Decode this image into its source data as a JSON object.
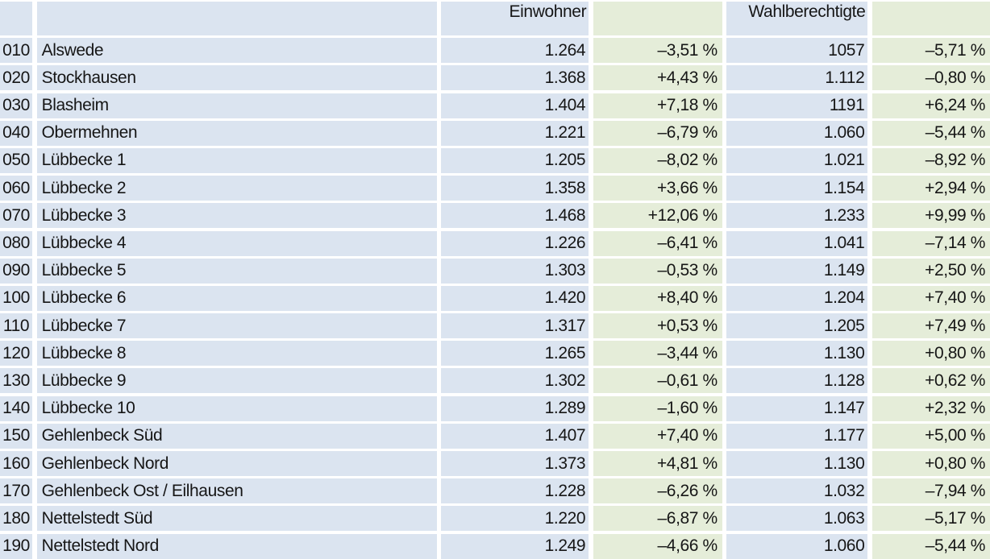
{
  "table": {
    "headers": {
      "einwohner": "Einwohner",
      "wahlberechtigte": "Wahlberechtigte"
    },
    "rows": [
      {
        "code": "010",
        "name": "Alswede",
        "einwohner": "1.264",
        "einwohner_change": "–3,51 %",
        "wahlberechtigte": "1057",
        "wahlberechtigte_change": "–5,71 %"
      },
      {
        "code": "020",
        "name": "Stockhausen",
        "einwohner": "1.368",
        "einwohner_change": "+4,43 %",
        "wahlberechtigte": "1.112",
        "wahlberechtigte_change": "–0,80 %"
      },
      {
        "code": "030",
        "name": "Blasheim",
        "einwohner": "1.404",
        "einwohner_change": "+7,18 %",
        "wahlberechtigte": "1191",
        "wahlberechtigte_change": "+6,24 %"
      },
      {
        "code": "040",
        "name": "Obermehnen",
        "einwohner": "1.221",
        "einwohner_change": "–6,79 %",
        "wahlberechtigte": "1.060",
        "wahlberechtigte_change": "–5,44 %"
      },
      {
        "code": "050",
        "name": "Lübbecke 1",
        "einwohner": "1.205",
        "einwohner_change": "–8,02 %",
        "wahlberechtigte": "1.021",
        "wahlberechtigte_change": "–8,92 %"
      },
      {
        "code": "060",
        "name": "Lübbecke 2",
        "einwohner": "1.358",
        "einwohner_change": "+3,66 %",
        "wahlberechtigte": "1.154",
        "wahlberechtigte_change": "+2,94 %"
      },
      {
        "code": "070",
        "name": "Lübbecke 3",
        "einwohner": "1.468",
        "einwohner_change": "+12,06 %",
        "wahlberechtigte": "1.233",
        "wahlberechtigte_change": "+9,99 %"
      },
      {
        "code": "080",
        "name": "Lübbecke 4",
        "einwohner": "1.226",
        "einwohner_change": "–6,41 %",
        "wahlberechtigte": "1.041",
        "wahlberechtigte_change": "–7,14 %"
      },
      {
        "code": "090",
        "name": "Lübbecke 5",
        "einwohner": "1.303",
        "einwohner_change": "–0,53 %",
        "wahlberechtigte": "1.149",
        "wahlberechtigte_change": "+2,50 %"
      },
      {
        "code": "100",
        "name": "Lübbecke 6",
        "einwohner": "1.420",
        "einwohner_change": "+8,40 %",
        "wahlberechtigte": "1.204",
        "wahlberechtigte_change": "+7,40 %"
      },
      {
        "code": "110",
        "name": "Lübbecke 7",
        "einwohner": "1.317",
        "einwohner_change": "+0,53 %",
        "wahlberechtigte": "1.205",
        "wahlberechtigte_change": "+7,49 %"
      },
      {
        "code": "120",
        "name": "Lübbecke 8",
        "einwohner": "1.265",
        "einwohner_change": "–3,44 %",
        "wahlberechtigte": "1.130",
        "wahlberechtigte_change": "+0,80 %"
      },
      {
        "code": "130",
        "name": "Lübbecke 9",
        "einwohner": "1.302",
        "einwohner_change": "–0,61 %",
        "wahlberechtigte": "1.128",
        "wahlberechtigte_change": "+0,62 %"
      },
      {
        "code": "140",
        "name": "Lübbecke 10",
        "einwohner": "1.289",
        "einwohner_change": "–1,60 %",
        "wahlberechtigte": "1.147",
        "wahlberechtigte_change": "+2,32 %"
      },
      {
        "code": "150",
        "name": "Gehlenbeck Süd",
        "einwohner": "1.407",
        "einwohner_change": "+7,40 %",
        "wahlberechtigte": "1.177",
        "wahlberechtigte_change": "+5,00 %"
      },
      {
        "code": "160",
        "name": "Gehlenbeck Nord",
        "einwohner": "1.373",
        "einwohner_change": "+4,81 %",
        "wahlberechtigte": "1.130",
        "wahlberechtigte_change": "+0,80 %"
      },
      {
        "code": "170",
        "name": "Gehlenbeck Ost / Eilhausen",
        "einwohner": "1.228",
        "einwohner_change": "–6,26 %",
        "wahlberechtigte": "1.032",
        "wahlberechtigte_change": "–7,94 %"
      },
      {
        "code": "180",
        "name": "Nettelstedt Süd",
        "einwohner": "1.220",
        "einwohner_change": "–6,87 %",
        "wahlberechtigte": "1.063",
        "wahlberechtigte_change": "–5,17 %"
      },
      {
        "code": "190",
        "name": "Nettelstedt Nord",
        "einwohner": "1.249",
        "einwohner_change": "–4,66 %",
        "wahlberechtigte": "1.060",
        "wahlberechtigte_change": "–5,44 %"
      }
    ]
  },
  "colors": {
    "column_blue": "#dbe4f0",
    "column_green": "#e5edd9",
    "gutter_white": "#ffffff",
    "text": "#161616"
  }
}
